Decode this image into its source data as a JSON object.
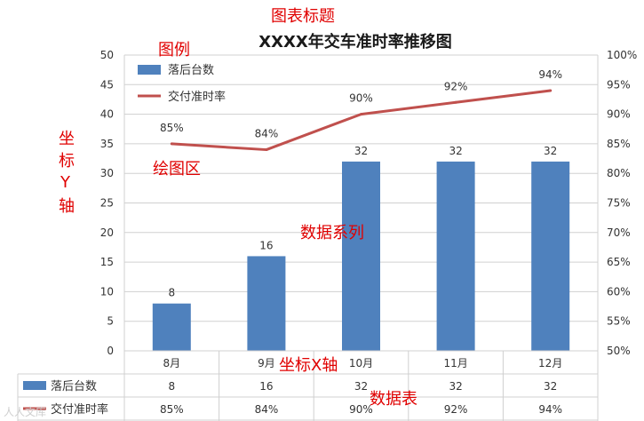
{
  "chart_data": {
    "type": "bar",
    "title": "XXXX年交车准时率推移图",
    "categories": [
      "8月",
      "9月",
      "10月",
      "11月",
      "12月"
    ],
    "series": [
      {
        "name": "落后台数",
        "kind": "bar",
        "axis": "left",
        "values": [
          8,
          16,
          32,
          32,
          32
        ],
        "labels": [
          "8",
          "16",
          "32",
          "32",
          "32"
        ]
      },
      {
        "name": "交付准时率",
        "kind": "line",
        "axis": "right",
        "values": [
          85,
          84,
          90,
          92,
          94
        ],
        "labels": [
          "85%",
          "84%",
          "90%",
          "92%",
          "94%"
        ]
      }
    ],
    "y_left": {
      "min": 0,
      "max": 50,
      "step": 5,
      "ticks": [
        "0",
        "5",
        "10",
        "15",
        "20",
        "25",
        "30",
        "35",
        "40",
        "45",
        "50"
      ]
    },
    "y_right": {
      "min": 50,
      "max": 100,
      "step": 5,
      "ticks": [
        "50%",
        "55%",
        "60%",
        "65%",
        "70%",
        "75%",
        "80%",
        "85%",
        "90%",
        "95%",
        "100%"
      ]
    },
    "grid": true,
    "legend_position": "top-left",
    "data_table": true
  },
  "annotations": {
    "chart_title": "图表标题",
    "legend": "图例",
    "y_axis": [
      "坐",
      "标",
      "Y",
      "轴"
    ],
    "plot_area": "绘图区",
    "data_series": "数据系列",
    "x_axis": "坐标X轴",
    "data_table": "数据表"
  },
  "watermark": "人人文库",
  "colors": {
    "bar": "#4f81bd",
    "line": "#c0504d",
    "annotation": "#e00000",
    "grid": "#d0d0d0",
    "text": "#333333"
  }
}
